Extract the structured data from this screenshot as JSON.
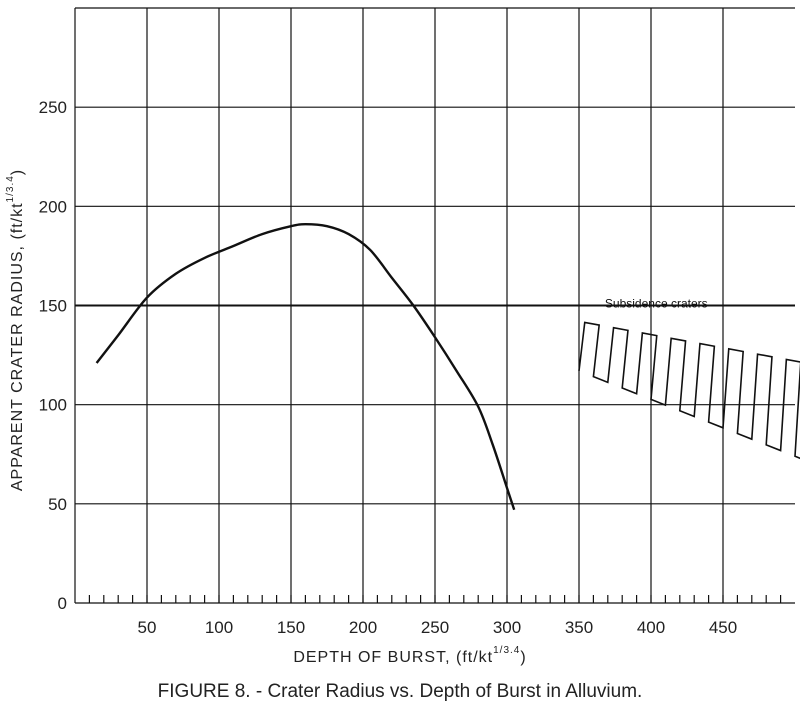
{
  "caption": "FIGURE 8. - Crater Radius vs. Depth of Burst in Alluvium.",
  "chart_data": {
    "type": "line",
    "title": "",
    "xlabel": "DEPTH OF BURST, (ft/kt",
    "xlabel_exponent": "1/3.4",
    "xlabel_close": ")",
    "ylabel": "APPARENT CRATER RADIUS, (ft/kt",
    "ylabel_exponent": "1/3.4",
    "ylabel_close": ")",
    "xlim": [
      0,
      500
    ],
    "ylim": [
      0,
      300
    ],
    "x_ticks": [
      50,
      100,
      150,
      200,
      250,
      300,
      350,
      400,
      450
    ],
    "y_ticks": [
      0,
      50,
      100,
      150,
      200,
      250
    ],
    "grid": true,
    "series": [
      {
        "x": [
          15,
          30,
          50,
          70,
          90,
          110,
          130,
          150,
          160,
          175,
          190,
          205,
          220,
          235,
          250,
          265,
          280,
          290,
          300,
          305
        ],
        "y": [
          121,
          135,
          154,
          166,
          174,
          180,
          186,
          190,
          191,
          190,
          186,
          178,
          164,
          150,
          134,
          117,
          99,
          80,
          58,
          47
        ]
      }
    ],
    "annotations": [
      {
        "text": "Subsidence craters",
        "type": "hatched-band",
        "x_range": [
          350,
          500
        ],
        "upper": [
          [
            350,
            142
          ],
          [
            500,
            122
          ]
        ],
        "lower": [
          [
            350,
            117
          ],
          [
            500,
            74
          ]
        ]
      }
    ],
    "colors": {
      "line": "#111111",
      "grid": "#111111",
      "background": "#ffffff"
    }
  }
}
